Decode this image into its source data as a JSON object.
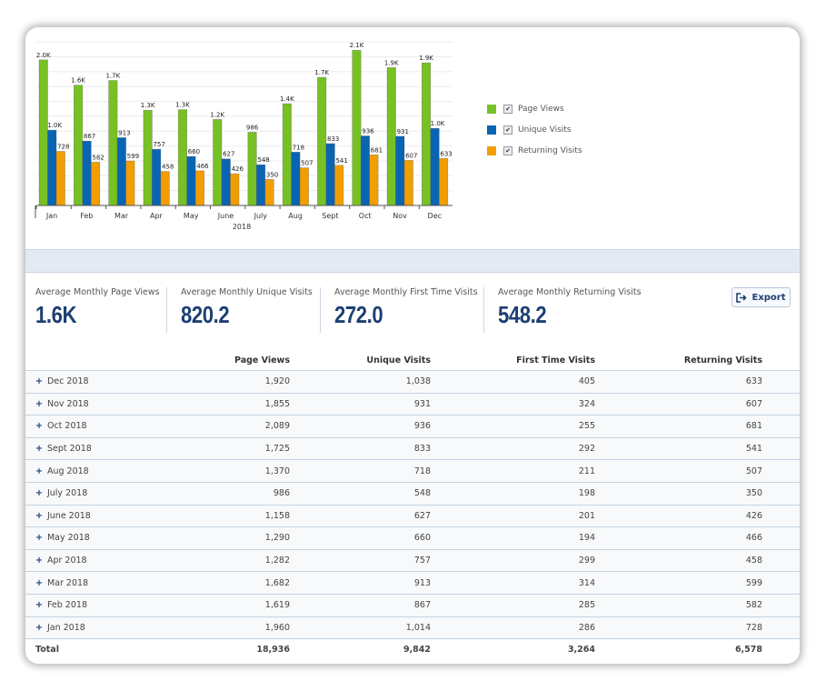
{
  "chart_data": {
    "type": "bar",
    "xlabel": "2018",
    "categories": [
      "Jan",
      "Feb",
      "Mar",
      "Apr",
      "May",
      "June",
      "July",
      "Aug",
      "Sept",
      "Oct",
      "Nov",
      "Dec"
    ],
    "ylim": [
      0,
      2300
    ],
    "grid": true,
    "legend_position": "right",
    "series": [
      {
        "name": "Page Views",
        "color": "#77c124",
        "values": [
          1960,
          1619,
          1682,
          1282,
          1290,
          1158,
          986,
          1370,
          1725,
          2089,
          1855,
          1920
        ],
        "labels": [
          "2.0K",
          "1.6K",
          "1.7K",
          "1.3K",
          "1.3K",
          "1.2K",
          "986",
          "1.4K",
          "1.7K",
          "2.1K",
          "1.9K",
          "1.9K"
        ]
      },
      {
        "name": "Unique Visits",
        "color": "#0a64b4",
        "values": [
          1014,
          867,
          913,
          757,
          660,
          627,
          548,
          718,
          833,
          936,
          931,
          1038
        ],
        "labels": [
          "1.0K",
          "867",
          "913",
          "757",
          "660",
          "627",
          "548",
          "718",
          "833",
          "936",
          "931",
          "1.0K"
        ]
      },
      {
        "name": "Returning Visits",
        "color": "#f29e00",
        "values": [
          728,
          582,
          599,
          458,
          466,
          426,
          350,
          507,
          541,
          681,
          607,
          633
        ],
        "labels": [
          "728",
          "582",
          "599",
          "458",
          "466",
          "426",
          "350",
          "507",
          "541",
          "681",
          "607",
          "633"
        ]
      }
    ]
  },
  "legend": [
    {
      "label": "Page Views",
      "checked": true
    },
    {
      "label": "Unique Visits",
      "checked": true
    },
    {
      "label": "Returning Visits",
      "checked": true
    }
  ],
  "stats": [
    {
      "label": "Average Monthly Page Views",
      "value": "1.6K"
    },
    {
      "label": "Average Monthly Unique Visits",
      "value": "820.2"
    },
    {
      "label": "Average Monthly First Time Visits",
      "value": "272.0"
    },
    {
      "label": "Average Monthly Returning Visits",
      "value": "548.2"
    }
  ],
  "export_label": "Export",
  "table": {
    "headers": [
      "",
      "Page Views",
      "Unique Visits",
      "First Time Visits",
      "Returning Visits"
    ],
    "rows": [
      [
        "Dec 2018",
        "1,920",
        "1,038",
        "405",
        "633"
      ],
      [
        "Nov 2018",
        "1,855",
        "931",
        "324",
        "607"
      ],
      [
        "Oct 2018",
        "2,089",
        "936",
        "255",
        "681"
      ],
      [
        "Sept 2018",
        "1,725",
        "833",
        "292",
        "541"
      ],
      [
        "Aug 2018",
        "1,370",
        "718",
        "211",
        "507"
      ],
      [
        "July 2018",
        "986",
        "548",
        "198",
        "350"
      ],
      [
        "June 2018",
        "1,158",
        "627",
        "201",
        "426"
      ],
      [
        "May 2018",
        "1,290",
        "660",
        "194",
        "466"
      ],
      [
        "Apr 2018",
        "1,282",
        "757",
        "299",
        "458"
      ],
      [
        "Mar 2018",
        "1,682",
        "913",
        "314",
        "599"
      ],
      [
        "Feb 2018",
        "1,619",
        "867",
        "285",
        "582"
      ],
      [
        "Jan 2018",
        "1,960",
        "1,014",
        "286",
        "728"
      ]
    ],
    "total": [
      "Total",
      "18,936",
      "9,842",
      "3,264",
      "6,578"
    ]
  }
}
